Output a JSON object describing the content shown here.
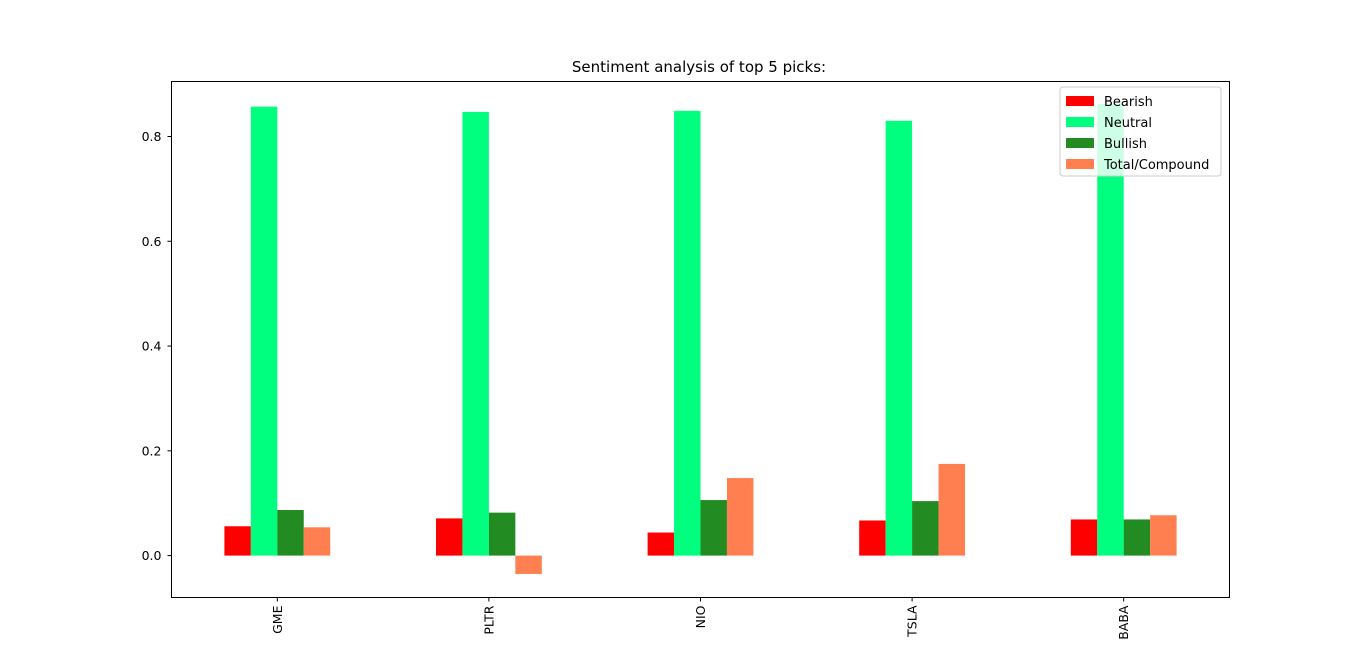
{
  "chart_data": {
    "type": "bar",
    "title": "Sentiment analysis of top 5 picks:",
    "xlabel": "",
    "ylabel": "",
    "categories": [
      "GME",
      "PLTR",
      "NIO",
      "TSLA",
      "BABA"
    ],
    "yticks": [
      0.0,
      0.2,
      0.4,
      0.6,
      0.8
    ],
    "ytick_labels": [
      "0.0",
      "0.2",
      "0.4",
      "0.6",
      "0.8"
    ],
    "ylim": [
      -0.08,
      0.905
    ],
    "grid": false,
    "legend_position": "top-right",
    "series": [
      {
        "name": "Bearish",
        "color": "#ff0000",
        "values": [
          0.056,
          0.071,
          0.044,
          0.067,
          0.069
        ]
      },
      {
        "name": "Neutral",
        "color": "#00ff7f",
        "values": [
          0.857,
          0.847,
          0.849,
          0.83,
          0.862
        ]
      },
      {
        "name": "Bullish",
        "color": "#228b22",
        "values": [
          0.087,
          0.082,
          0.106,
          0.104,
          0.069
        ]
      },
      {
        "name": "Total/Compound",
        "color": "#ff7f50",
        "values": [
          0.054,
          -0.035,
          0.148,
          0.175,
          0.077
        ]
      }
    ]
  }
}
